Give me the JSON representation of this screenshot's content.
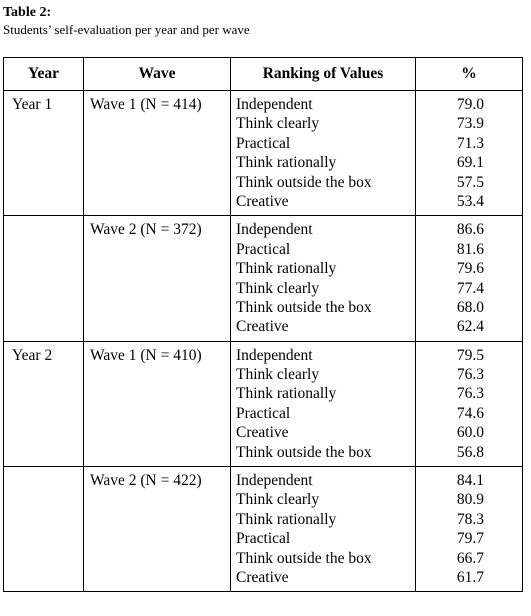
{
  "caption": {
    "label": "Table 2:",
    "description": "Students’ self-evaluation per year and per wave"
  },
  "headers": {
    "year": "Year",
    "wave": "Wave",
    "ranking": "Ranking of Values",
    "pct": "%"
  },
  "rows": [
    {
      "year": "Year 1",
      "wave": "Wave 1 (N = 414)",
      "values": [
        "Independent",
        "Think clearly",
        "Practical",
        "Think rationally",
        "Think outside the box",
        "Creative"
      ],
      "pcts": [
        "79.0",
        "73.9",
        "71.3",
        "69.1",
        "57.5",
        "53.4"
      ]
    },
    {
      "year": "",
      "wave": "Wave 2 (N = 372)",
      "values": [
        "Independent",
        "Practical",
        "Think rationally",
        "Think clearly",
        "Think outside the box",
        "Creative"
      ],
      "pcts": [
        "86.6",
        "81.6",
        "79.6",
        "77.4",
        "68.0",
        "62.4"
      ]
    },
    {
      "year": "Year 2",
      "wave": "Wave 1 (N = 410)",
      "values": [
        "Independent",
        "Think clearly",
        "Think rationally",
        "Practical",
        "Creative",
        "Think outside the box"
      ],
      "pcts": [
        "79.5",
        "76.3",
        "76.3",
        "74.6",
        "60.0",
        "56.8"
      ]
    },
    {
      "year": "",
      "wave": "Wave 2 (N = 422)",
      "values": [
        "Independent",
        "Think clearly",
        "Think rationally",
        "Practical",
        "Think outside the box",
        "Creative"
      ],
      "pcts": [
        "84.1",
        "80.9",
        "78.3",
        "79.7",
        "66.7",
        "61.7"
      ]
    }
  ]
}
